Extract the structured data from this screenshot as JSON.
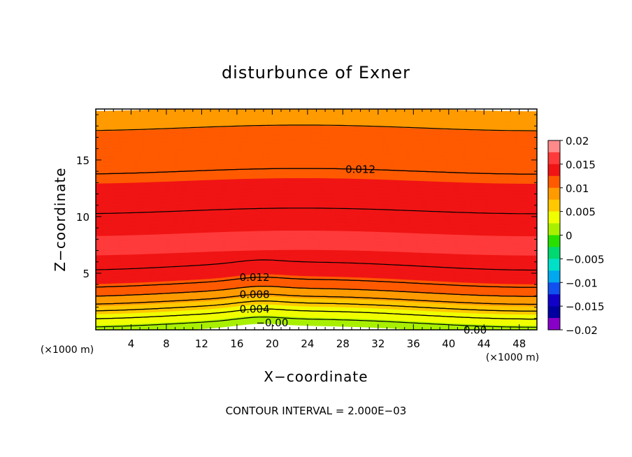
{
  "chart_data": {
    "type": "contour",
    "title": "disturbunce of Exner",
    "xlabel": "X−coordinate",
    "ylabel": "Z−coordinate",
    "x_unit": "(×1000 m)",
    "y_unit": "(×1000 m)",
    "xlim": [
      0,
      50
    ],
    "ylim": [
      0,
      19.5
    ],
    "x_ticks": [
      4,
      8,
      12,
      16,
      20,
      24,
      28,
      32,
      36,
      40,
      44,
      48
    ],
    "y_ticks": [
      5,
      10,
      15
    ],
    "footnote": "CONTOUR INTERVAL = 2.000E−03",
    "contour_interval": 0.002,
    "contour_labels": [
      {
        "text": "0.012",
        "x": 30,
        "z": 14.0
      },
      {
        "text": "0.012",
        "x": 18,
        "z": 4.1
      },
      {
        "text": "0.008",
        "x": 18,
        "z": 2.6
      },
      {
        "text": "0.004",
        "x": 18,
        "z": 1.3
      },
      {
        "text": "−0.00",
        "x": 20,
        "z": 0.1
      },
      {
        "text": "0.00",
        "x": 43,
        "z": 0.2
      }
    ],
    "colorbar": {
      "min": -0.02,
      "max": 0.02,
      "step": 0.0025,
      "tick_labels": [
        "0.02",
        "0.015",
        "0.01",
        "0.005",
        "0",
        "−0.005",
        "−0.01",
        "−0.015",
        "−0.02"
      ],
      "colors": [
        "#ff8a8a",
        "#ff3a3a",
        "#f01414",
        "#ff5a00",
        "#ff9a00",
        "#ffc800",
        "#f0ff00",
        "#a8f000",
        "#28e000",
        "#00d870",
        "#00e0c8",
        "#00a8f0",
        "#1050f0",
        "#1000c8",
        "#0000a0",
        "#8800c8"
      ]
    },
    "field_profile": [
      {
        "z": 0.0,
        "value": 0.0
      },
      {
        "z": 0.4,
        "value": 0.0015
      },
      {
        "z": 1.3,
        "value": 0.004
      },
      {
        "z": 2.0,
        "value": 0.006
      },
      {
        "z": 2.6,
        "value": 0.008
      },
      {
        "z": 3.3,
        "value": 0.01
      },
      {
        "z": 4.1,
        "value": 0.012
      },
      {
        "z": 5.0,
        "value": 0.0135
      },
      {
        "z": 7.5,
        "value": 0.0155
      },
      {
        "z": 9.5,
        "value": 0.0145
      },
      {
        "z": 11.5,
        "value": 0.0135
      },
      {
        "z": 14.0,
        "value": 0.012
      },
      {
        "z": 17.0,
        "value": 0.0105
      },
      {
        "z": 19.5,
        "value": 0.009
      }
    ],
    "grid": false
  }
}
